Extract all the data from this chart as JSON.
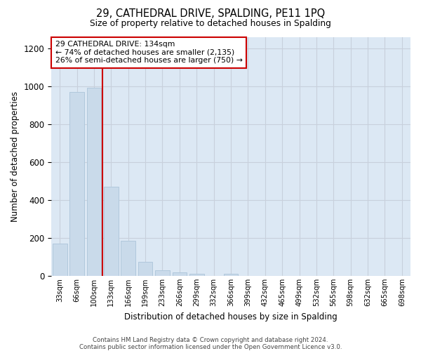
{
  "title": "29, CATHEDRAL DRIVE, SPALDING, PE11 1PQ",
  "subtitle": "Size of property relative to detached houses in Spalding",
  "xlabel": "Distribution of detached houses by size in Spalding",
  "ylabel": "Number of detached properties",
  "bar_color": "#c9daea",
  "bar_edgecolor": "#b0c8dc",
  "grid_color": "#c8d0dc",
  "bg_color": "#dce8f4",
  "marker_color": "#cc0000",
  "marker_bin_index": 3,
  "categories": [
    "33sqm",
    "66sqm",
    "100sqm",
    "133sqm",
    "166sqm",
    "199sqm",
    "233sqm",
    "266sqm",
    "299sqm",
    "332sqm",
    "366sqm",
    "399sqm",
    "432sqm",
    "465sqm",
    "499sqm",
    "532sqm",
    "565sqm",
    "598sqm",
    "632sqm",
    "665sqm",
    "698sqm"
  ],
  "values": [
    170,
    970,
    990,
    470,
    185,
    75,
    28,
    20,
    13,
    0,
    13,
    0,
    0,
    0,
    0,
    0,
    0,
    0,
    0,
    0,
    0
  ],
  "annotation_line1": "29 CATHEDRAL DRIVE: 134sqm",
  "annotation_line2": "← 74% of detached houses are smaller (2,135)",
  "annotation_line3": "26% of semi-detached houses are larger (750) →",
  "ylim": [
    0,
    1260
  ],
  "yticks": [
    0,
    200,
    400,
    600,
    800,
    1000,
    1200
  ],
  "footer1": "Contains HM Land Registry data © Crown copyright and database right 2024.",
  "footer2": "Contains public sector information licensed under the Open Government Licence v3.0."
}
